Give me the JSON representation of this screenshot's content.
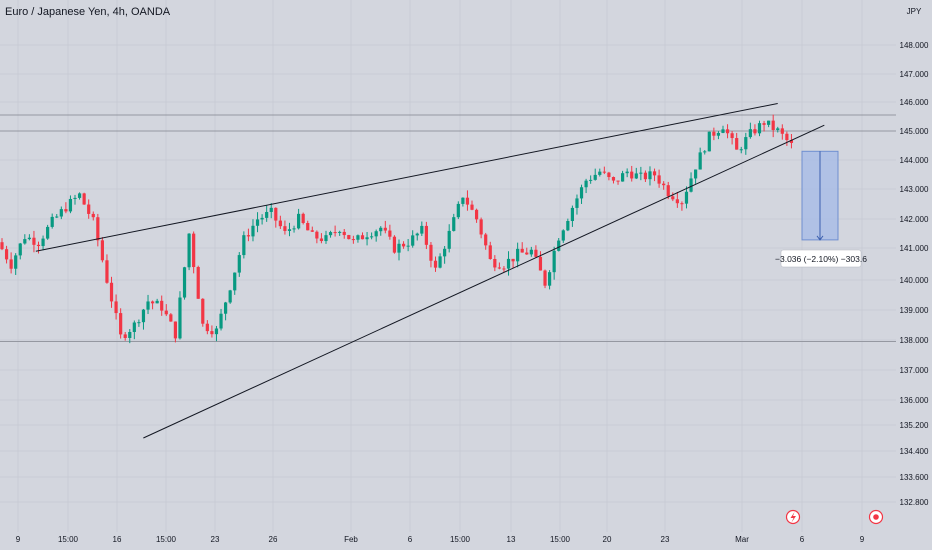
{
  "header": {
    "symbol_title": "Euro / Japanese Yen, 4h, OANDA"
  },
  "axis": {
    "currency": "JPY"
  },
  "measure": {
    "label": "−3.036 (−2.10%) −303.6"
  },
  "colors": {
    "background": "#d3d6de",
    "up": "#089981",
    "down": "#f23645",
    "trendline": "#131722",
    "measure_fill": "#a9bde6",
    "measure_border": "#6f8fd0",
    "text": "#131722",
    "hline": "#9598a1"
  },
  "chart_data": {
    "type": "candlestick",
    "title": "Euro / Japanese Yen, 4h, OANDA",
    "y_axis_ticks": [
      "148.000",
      "147.000",
      "146.000",
      "145.000",
      "144.000",
      "143.000",
      "142.000",
      "141.000",
      "140.000",
      "139.000",
      "138.000",
      "137.000",
      "136.000",
      "135.200",
      "134.400",
      "133.600",
      "132.800"
    ],
    "x_axis_ticks": [
      "9",
      "15:00",
      "16",
      "15:00",
      "23",
      "26",
      "Feb",
      "6",
      "15:00",
      "13",
      "15:00",
      "20",
      "23",
      "Mar",
      "6",
      "9"
    ],
    "horizontal_levels": [
      145.55,
      145.0,
      137.95
    ],
    "trendlines": [
      {
        "name": "upper",
        "from": [
          0.04,
          140.9
        ],
        "to": [
          0.868,
          145.95
        ]
      },
      {
        "name": "lower",
        "from": [
          0.16,
          134.8
        ],
        "to": [
          0.92,
          145.2
        ]
      }
    ],
    "measure_range": {
      "high": 144.3,
      "low": 141.28,
      "change": -3.036,
      "change_pct": -2.1,
      "pips": -303.6
    },
    "close_path": [
      141.2,
      140.5,
      141.4,
      141.2,
      141.9,
      142.4,
      142.8,
      141.9,
      140.0,
      138.1,
      138.5,
      139.3,
      139.1,
      138.2,
      141.5,
      138.5,
      138.3,
      139.8,
      141.3,
      142.0,
      142.2,
      141.5,
      142.0,
      141.4,
      141.3,
      141.7,
      141.2,
      141.5,
      141.7,
      141.0,
      141.2,
      141.6,
      140.3,
      141.5,
      142.8,
      142.0,
      140.6,
      140.5,
      140.8,
      140.9,
      139.9,
      141.4,
      142.4,
      143.3,
      143.6,
      143.2,
      143.6,
      143.4,
      143.5,
      142.9,
      142.6,
      143.8,
      144.8,
      145.2,
      144.3,
      144.9,
      145.3,
      145.0,
      144.5
    ],
    "series": [
      {
        "name": "EURJPY 4h",
        "description": "OHLC candles generated along close_path"
      }
    ]
  }
}
